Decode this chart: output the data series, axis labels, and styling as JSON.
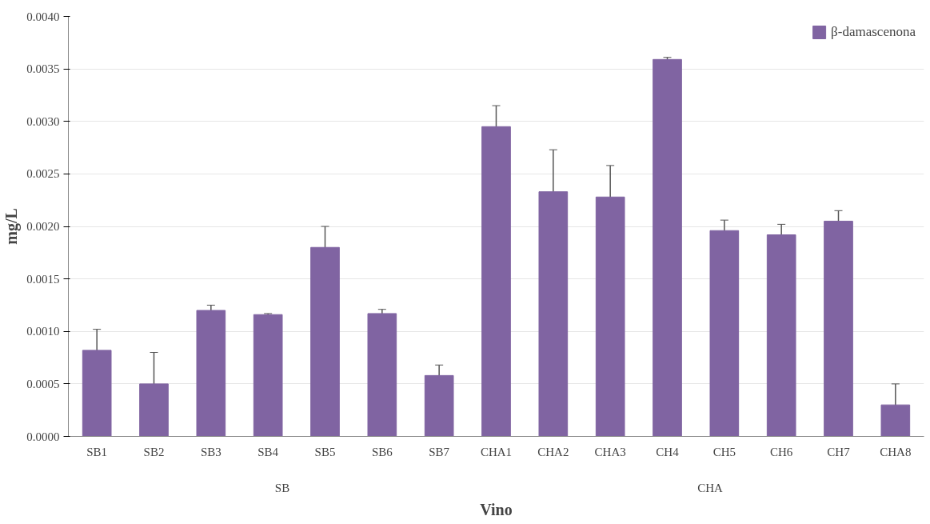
{
  "chart_data": {
    "type": "bar",
    "xlabel": "Vino",
    "ylabel": "mg/L",
    "categories": [
      "SB1",
      "SB2",
      "SB3",
      "SB4",
      "SB5",
      "SB6",
      "SB7",
      "CHA1",
      "CHA2",
      "CHA3",
      "CH4",
      "CH5",
      "CH6",
      "CH7",
      "CHA8"
    ],
    "series": [
      {
        "name": "β-damascenona",
        "color": "#8064a2",
        "values": [
          0.00082,
          0.0005,
          0.0012,
          0.00116,
          0.0018,
          0.00117,
          0.00058,
          0.00295,
          0.00233,
          0.00228,
          0.00359,
          0.00196,
          0.00192,
          0.00205,
          0.0003
        ],
        "errors": [
          0.0002,
          0.0003,
          5e-05,
          1e-05,
          0.0002,
          4e-05,
          0.0001,
          0.0002,
          0.0004,
          0.0003,
          2e-05,
          0.0001,
          0.0001,
          0.0001,
          0.0002
        ]
      }
    ],
    "ylim": [
      0,
      0.004
    ],
    "yticks": [
      {
        "value": 0,
        "label": "0.0000"
      },
      {
        "value": 0.0005,
        "label": "0.0005"
      },
      {
        "value": 0.001,
        "label": "0.0010"
      },
      {
        "value": 0.0015,
        "label": "0.0015"
      },
      {
        "value": 0.002,
        "label": "0.0020"
      },
      {
        "value": 0.0025,
        "label": "0.0025"
      },
      {
        "value": 0.003,
        "label": "0.0030"
      },
      {
        "value": 0.0035,
        "label": "0.0035"
      },
      {
        "value": 0.004,
        "label": "0.0040"
      }
    ],
    "annotations": [
      "SB",
      "CHA"
    ],
    "grid": "y",
    "legend": "top right"
  }
}
